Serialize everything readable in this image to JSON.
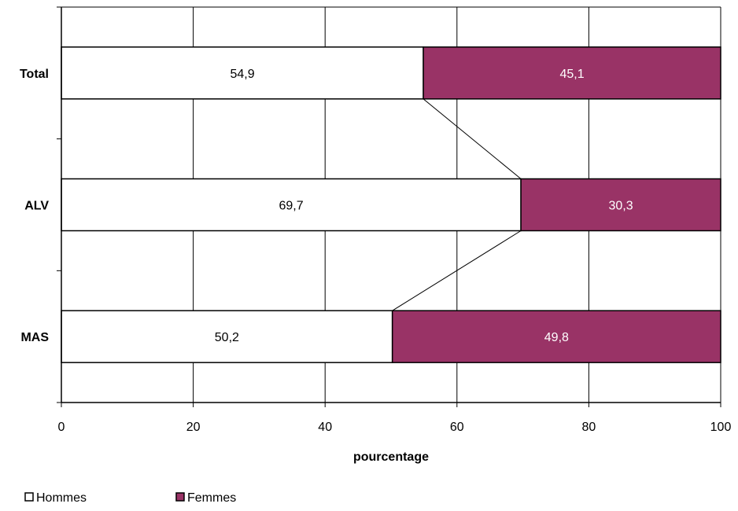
{
  "chart_data": {
    "type": "bar",
    "orientation": "horizontal",
    "stacked": true,
    "categories": [
      "Total",
      "ALV",
      "MAS"
    ],
    "series": [
      {
        "name": "Hommes",
        "values": [
          54.9,
          69.7,
          50.2
        ],
        "labels": [
          "54,9",
          "69,7",
          "50,2"
        ],
        "color": "#ffffff",
        "label_color": "#000000"
      },
      {
        "name": "Femmes",
        "values": [
          45.1,
          30.3,
          49.8
        ],
        "labels": [
          "45,1",
          "30,3",
          "49,8"
        ],
        "color": "#993366",
        "label_color": "#ffffff"
      }
    ],
    "xlabel": "pourcentage",
    "xlim": [
      0,
      100
    ],
    "xticks": [
      0,
      20,
      40,
      60,
      80,
      100
    ],
    "xtick_labels": [
      "0",
      "20",
      "40",
      "60",
      "80",
      "100"
    ],
    "grid": "vertical",
    "series_lines": true,
    "legend_position": "bottom-left"
  }
}
